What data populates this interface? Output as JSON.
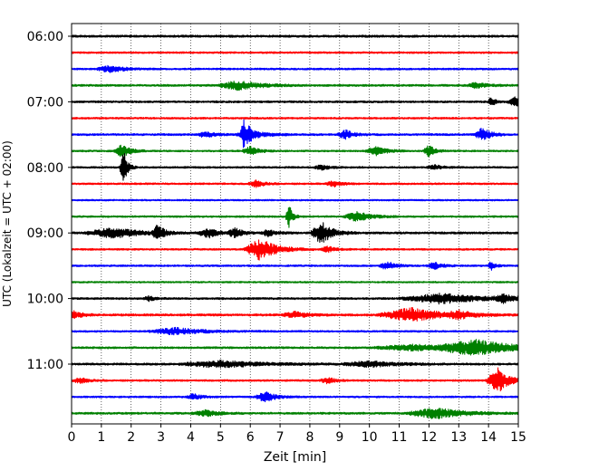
{
  "chart_data": {
    "type": "line",
    "title": "",
    "xlabel": "Zeit  [min]",
    "ylabel": "UTC (Lokalzeit = UTC + 02:00)",
    "xlim": [
      0,
      15
    ],
    "x_ticks": [
      "0",
      "1",
      "2",
      "3",
      "4",
      "5",
      "6",
      "7",
      "8",
      "9",
      "10",
      "11",
      "12",
      "13",
      "14",
      "15"
    ],
    "y_tick_labels": [
      "06:00",
      "07:00",
      "08:00",
      "09:00",
      "10:00",
      "11:00"
    ],
    "grid": "vertical dotted",
    "trace_interval_minutes": 15,
    "colors": [
      "#000000",
      "#ff0000",
      "#0000ff",
      "#008000"
    ],
    "traces": [
      {
        "start": "06:00",
        "color": "#000000",
        "amplitude": 0.55,
        "events": []
      },
      {
        "start": "06:15",
        "color": "#ff0000",
        "amplitude": 0.45,
        "events": []
      },
      {
        "start": "06:30",
        "color": "#0000ff",
        "amplitude": 0.45,
        "events": [
          {
            "t": 1.3,
            "a": 1.6,
            "w": 0.5
          }
        ]
      },
      {
        "start": "06:45",
        "color": "#008000",
        "amplitude": 0.5,
        "events": [
          {
            "t": 5.6,
            "a": 2.0,
            "w": 0.8
          },
          {
            "t": 13.6,
            "a": 1.2,
            "w": 0.4
          }
        ]
      },
      {
        "start": "07:00",
        "color": "#000000",
        "amplitude": 0.5,
        "events": [
          {
            "t": 14.9,
            "a": 2.0,
            "w": 0.3
          },
          {
            "t": 14.1,
            "a": 2.0,
            "w": 0.15
          }
        ]
      },
      {
        "start": "07:15",
        "color": "#ff0000",
        "amplitude": 0.45,
        "events": []
      },
      {
        "start": "07:30",
        "color": "#0000ff",
        "amplitude": 0.5,
        "events": [
          {
            "t": 5.8,
            "a": 6.0,
            "w": 0.15
          },
          {
            "t": 6.0,
            "a": 2.0,
            "w": 0.5
          },
          {
            "t": 9.2,
            "a": 2.0,
            "w": 0.3
          },
          {
            "t": 13.8,
            "a": 3.0,
            "w": 0.3
          },
          {
            "t": 4.5,
            "a": 1.5,
            "w": 0.3
          }
        ]
      },
      {
        "start": "07:45",
        "color": "#008000",
        "amplitude": 0.45,
        "events": [
          {
            "t": 1.7,
            "a": 3.0,
            "w": 0.3
          },
          {
            "t": 6.0,
            "a": 2.0,
            "w": 0.3
          },
          {
            "t": 10.2,
            "a": 2.0,
            "w": 0.4
          },
          {
            "t": 12.0,
            "a": 3.0,
            "w": 0.2
          }
        ]
      },
      {
        "start": "08:00",
        "color": "#000000",
        "amplitude": 0.45,
        "events": [
          {
            "t": 1.75,
            "a": 8.0,
            "w": 0.15
          },
          {
            "t": 8.4,
            "a": 1.0,
            "w": 0.3
          },
          {
            "t": 12.2,
            "a": 1.0,
            "w": 0.3
          }
        ]
      },
      {
        "start": "08:15",
        "color": "#ff0000",
        "amplitude": 0.45,
        "events": [
          {
            "t": 6.2,
            "a": 1.6,
            "w": 0.3
          },
          {
            "t": 8.8,
            "a": 1.3,
            "w": 0.3
          }
        ]
      },
      {
        "start": "08:30",
        "color": "#0000ff",
        "amplitude": 0.4,
        "events": []
      },
      {
        "start": "08:45",
        "color": "#008000",
        "amplitude": 0.45,
        "events": [
          {
            "t": 7.3,
            "a": 6.0,
            "w": 0.12
          },
          {
            "t": 9.6,
            "a": 2.2,
            "w": 0.5
          }
        ]
      },
      {
        "start": "09:00",
        "color": "#000000",
        "amplitude": 0.55,
        "events": [
          {
            "t": 1.4,
            "a": 2.2,
            "w": 1.0
          },
          {
            "t": 2.9,
            "a": 4.0,
            "w": 0.2
          },
          {
            "t": 4.6,
            "a": 2.0,
            "w": 0.4
          },
          {
            "t": 5.5,
            "a": 2.0,
            "w": 0.3
          },
          {
            "t": 8.4,
            "a": 5.0,
            "w": 0.4
          },
          {
            "t": 6.6,
            "a": 1.4,
            "w": 0.3
          }
        ]
      },
      {
        "start": "09:15",
        "color": "#ff0000",
        "amplitude": 0.45,
        "events": [
          {
            "t": 6.35,
            "a": 5.0,
            "w": 0.6
          },
          {
            "t": 8.6,
            "a": 1.2,
            "w": 0.3
          }
        ]
      },
      {
        "start": "09:30",
        "color": "#0000ff",
        "amplitude": 0.45,
        "events": [
          {
            "t": 10.6,
            "a": 2.0,
            "w": 0.3
          },
          {
            "t": 12.2,
            "a": 1.5,
            "w": 0.3
          },
          {
            "t": 14.1,
            "a": 2.0,
            "w": 0.15
          }
        ]
      },
      {
        "start": "09:45",
        "color": "#008000",
        "amplitude": 0.4,
        "events": []
      },
      {
        "start": "10:00",
        "color": "#000000",
        "amplitude": 0.5,
        "events": [
          {
            "t": 12.4,
            "a": 2.2,
            "w": 1.5
          },
          {
            "t": 2.6,
            "a": 1.2,
            "w": 0.2
          },
          {
            "t": 14.5,
            "a": 1.5,
            "w": 0.4
          }
        ]
      },
      {
        "start": "10:15",
        "color": "#ff0000",
        "amplitude": 0.55,
        "events": [
          {
            "t": 0.1,
            "a": 1.6,
            "w": 0.3
          },
          {
            "t": 11.4,
            "a": 3.0,
            "w": 1.2
          },
          {
            "t": 7.5,
            "a": 1.3,
            "w": 0.5
          },
          {
            "t": 13.0,
            "a": 1.5,
            "w": 0.4
          }
        ]
      },
      {
        "start": "10:30",
        "color": "#0000ff",
        "amplitude": 0.45,
        "events": [
          {
            "t": 3.5,
            "a": 1.5,
            "w": 1.0
          }
        ]
      },
      {
        "start": "10:45",
        "color": "#008000",
        "amplitude": 0.5,
        "events": [
          {
            "t": 13.6,
            "a": 3.2,
            "w": 1.5
          },
          {
            "t": 11.5,
            "a": 1.3,
            "w": 1.5
          }
        ]
      },
      {
        "start": "11:00",
        "color": "#000000",
        "amplitude": 0.5,
        "events": [
          {
            "t": 5.0,
            "a": 1.5,
            "w": 1.5
          },
          {
            "t": 10.0,
            "a": 1.3,
            "w": 1.0
          }
        ]
      },
      {
        "start": "11:15",
        "color": "#ff0000",
        "amplitude": 0.45,
        "events": [
          {
            "t": 14.3,
            "a": 6.0,
            "w": 0.4
          },
          {
            "t": 8.6,
            "a": 1.3,
            "w": 0.3
          },
          {
            "t": 0.3,
            "a": 1.3,
            "w": 0.3
          }
        ]
      },
      {
        "start": "11:30",
        "color": "#0000ff",
        "amplitude": 0.45,
        "events": [
          {
            "t": 6.5,
            "a": 2.2,
            "w": 0.4
          },
          {
            "t": 4.1,
            "a": 1.4,
            "w": 0.3
          }
        ]
      },
      {
        "start": "11:45",
        "color": "#008000",
        "amplitude": 0.5,
        "events": [
          {
            "t": 12.2,
            "a": 2.5,
            "w": 1.0
          },
          {
            "t": 4.5,
            "a": 1.3,
            "w": 0.5
          }
        ]
      }
    ]
  }
}
